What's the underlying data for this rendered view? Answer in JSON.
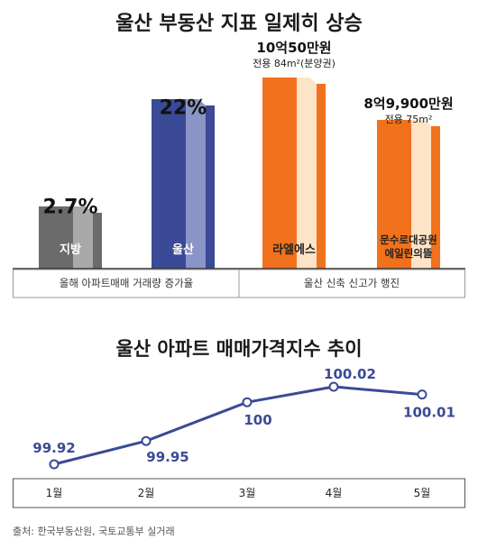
{
  "chart_data": [
    {
      "type": "bar",
      "title": "울산 부동산 지표 일제히 상승",
      "groups": [
        {
          "label": "올해 아파트매매 거래량 증가율",
          "bars": [
            0,
            1
          ]
        },
        {
          "label": "울산 신축 신고가 행진",
          "bars": [
            2,
            3
          ]
        }
      ],
      "bars": [
        {
          "name": "지방",
          "value_label": "2.7%",
          "sub_label": "",
          "color": "#6b6b6b",
          "light": "#a9a9a9"
        },
        {
          "name": "울산",
          "value_label": "22%",
          "sub_label": "",
          "color": "#3a4a96",
          "light": "#8a94c6"
        },
        {
          "name": "라엘에스",
          "value_label": "10억50만원",
          "sub_label": "전용 84m²(분양권)",
          "color": "#f2711c",
          "light": "#fde3c8"
        },
        {
          "name": "문수로대공원\n에일린의뜰",
          "value_label": "8억9,900만원",
          "sub_label": "전용 75m²",
          "color": "#f2711c",
          "light": "#fde3c8"
        }
      ]
    },
    {
      "type": "line",
      "title": "울산 아파트 매매가격지수 추이",
      "x": [
        "1월",
        "2월",
        "3월",
        "4월",
        "5월"
      ],
      "series": [
        {
          "values": [
            99.92,
            99.95,
            100,
            100.02,
            100.01
          ],
          "labels": [
            "99.92",
            "99.95",
            "100",
            "100.02",
            "100.01"
          ],
          "color": "#3a4a96"
        }
      ]
    }
  ],
  "source": "출처: 한국부동산원, 국토교통부 실거래"
}
